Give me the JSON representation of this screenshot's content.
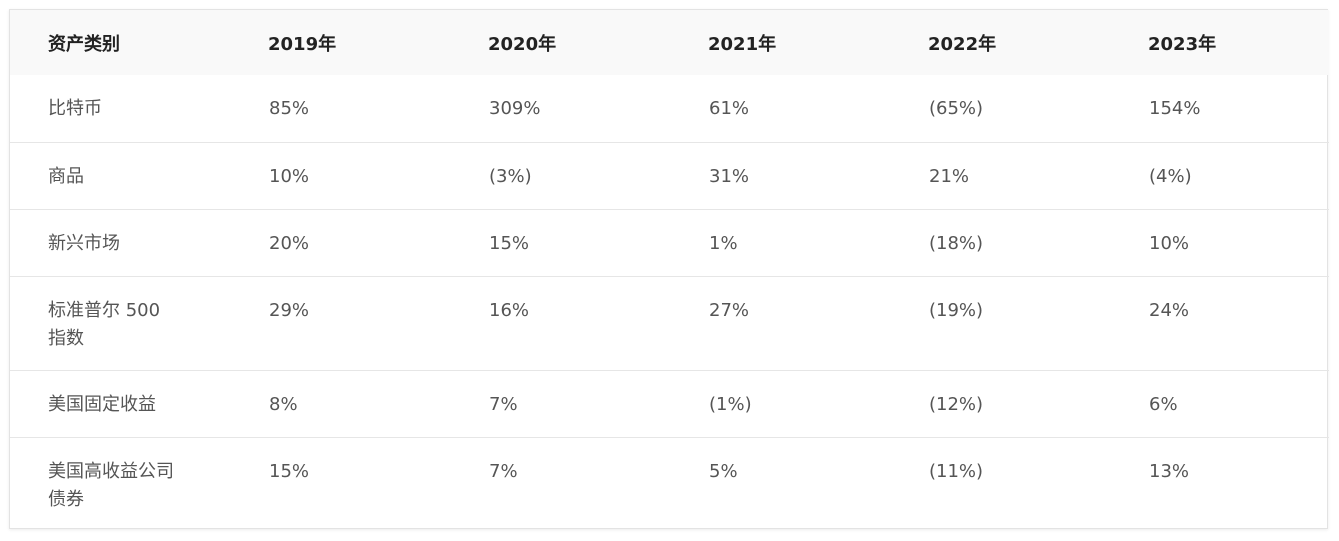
{
  "table": {
    "headers": [
      "资产类别",
      "2019年",
      "2020年",
      "2021年",
      "2022年",
      "2023年"
    ],
    "rows": [
      [
        "比特币",
        "85%",
        "309%",
        "61%",
        "(65%)",
        "154%"
      ],
      [
        "商品",
        "10%",
        "(3%)",
        "31%",
        "21%",
        "(4%)"
      ],
      [
        "新兴市场",
        "20%",
        "15%",
        "1%",
        "(18%)",
        "10%"
      ],
      [
        "标准普尔 500 指数",
        "29%",
        "16%",
        "27%",
        "(19%)",
        "24%"
      ],
      [
        "美国固定收益",
        "8%",
        "7%",
        "(1%)",
        "(12%)",
        "6%"
      ],
      [
        "美国高收益公司债券",
        "15%",
        "7%",
        "5%",
        "(11%)",
        "13%"
      ]
    ]
  }
}
